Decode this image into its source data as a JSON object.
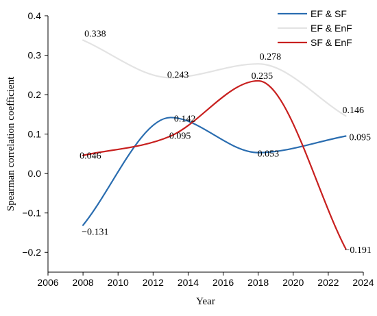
{
  "chart_data": {
    "type": "line",
    "title": "",
    "xlabel": "Year",
    "ylabel": "Spearman correlation coefficient",
    "xlim": [
      2006,
      2024
    ],
    "ylim": [
      -0.25,
      0.4
    ],
    "xticks": [
      "2006",
      "2008",
      "2010",
      "2012",
      "2014",
      "2016",
      "2018",
      "2020",
      "2022",
      "2024"
    ],
    "yticks": [
      "0.4",
      "0.3",
      "0.2",
      "0.1",
      "0.0",
      "−0.1",
      "−0.2"
    ],
    "smooth": true,
    "grid": false,
    "legend_position": "top-right",
    "series": [
      {
        "name": "EF & SF",
        "color": "#2a6db0",
        "x": [
          2008,
          2013,
          2018,
          2023
        ],
        "y": [
          -0.131,
          0.142,
          0.053,
          0.095
        ],
        "labels": [
          "−0.131",
          "0.142",
          "0.053",
          "0.095"
        ]
      },
      {
        "name": "EF & EnF",
        "color": "#e3e3e3",
        "x": [
          2008,
          2013,
          2018,
          2023
        ],
        "y": [
          0.338,
          0.243,
          0.278,
          0.146
        ],
        "labels": [
          "0.338",
          "0.243",
          "0.278",
          "0.146"
        ]
      },
      {
        "name": "SF & EnF",
        "color": "#c8201f",
        "x": [
          2008,
          2013,
          2018,
          2023
        ],
        "y": [
          0.046,
          0.095,
          0.235,
          -0.191
        ],
        "labels": [
          "0.046",
          "0.095",
          "0.235",
          "−0.191"
        ]
      }
    ]
  }
}
